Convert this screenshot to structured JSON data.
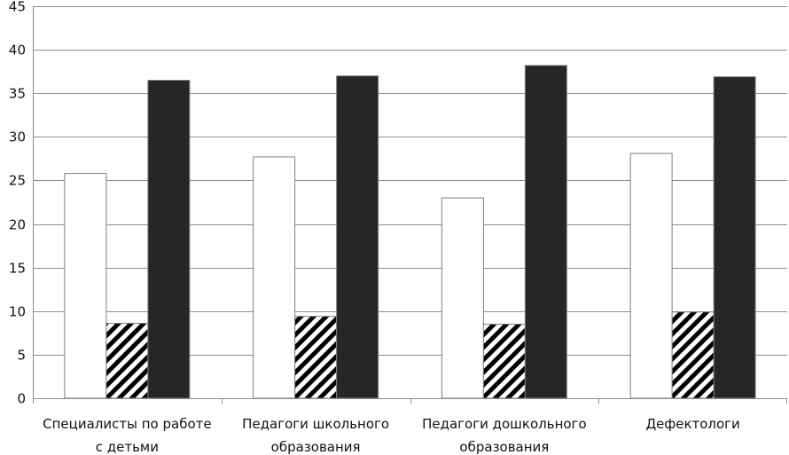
{
  "chart_data": {
    "type": "bar",
    "title": "",
    "xlabel": "",
    "ylabel": "",
    "ylim": [
      0,
      45
    ],
    "yticks": [
      0,
      5,
      10,
      15,
      20,
      25,
      30,
      35,
      40,
      45
    ],
    "grid": true,
    "legend": "none",
    "categories": [
      [
        "Специалисты по работе",
        "с детьми"
      ],
      [
        "Педагоги школьного",
        "образования"
      ],
      [
        "Педагоги дошкольного",
        "образования"
      ],
      [
        "Дефектологи"
      ]
    ],
    "series": [
      {
        "fill": "#ffffff",
        "pattern": "none",
        "values": [
          25.8,
          27.7,
          23.0,
          28.1
        ]
      },
      {
        "fill": "#ffffff",
        "pattern": "diagonal-stripes",
        "values": [
          8.6,
          9.4,
          8.5,
          9.9
        ]
      },
      {
        "fill": "#262626",
        "pattern": "none",
        "values": [
          36.5,
          37.0,
          38.2,
          36.9
        ]
      }
    ]
  }
}
